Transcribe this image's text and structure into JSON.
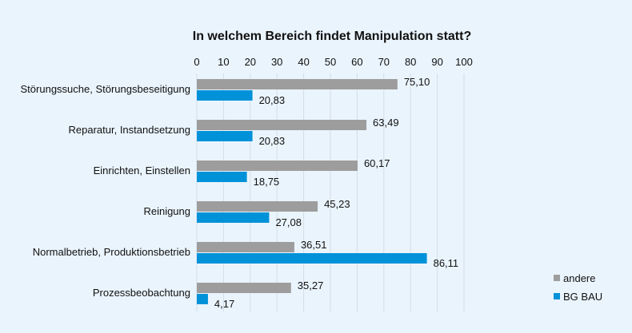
{
  "chart_data": {
    "type": "bar",
    "orientation": "horizontal",
    "title": "In welchem Bereich findet Manipulation statt?",
    "categories": [
      "Störungssuche, Störungsbeseitigung",
      "Reparatur, Instandsetzung",
      "Einrichten, Einstellen",
      "Reinigung",
      "Normalbetrieb, Produktionsbetrieb",
      "Prozessbeobachtung"
    ],
    "series": [
      {
        "name": "andere",
        "color": "#9d9d9d",
        "values": [
          75.1,
          63.49,
          60.17,
          45.23,
          36.51,
          35.27
        ],
        "labels": [
          "75,10",
          "63,49",
          "60,17",
          "45,23",
          "36,51",
          "35,27"
        ]
      },
      {
        "name": "BG BAU",
        "color": "#0092d9",
        "values": [
          20.83,
          20.83,
          18.75,
          27.08,
          86.11,
          4.17
        ],
        "labels": [
          "20,83",
          "20,83",
          "18,75",
          "27,08",
          "86,11",
          "4,17"
        ]
      }
    ],
    "xlim": [
      0,
      100
    ],
    "xticks": [
      "0",
      "10",
      "20",
      "30",
      "40",
      "50",
      "60",
      "70",
      "80",
      "90",
      "100"
    ],
    "axis_position": "top",
    "grid": true,
    "legend_position": "bottom-right"
  }
}
